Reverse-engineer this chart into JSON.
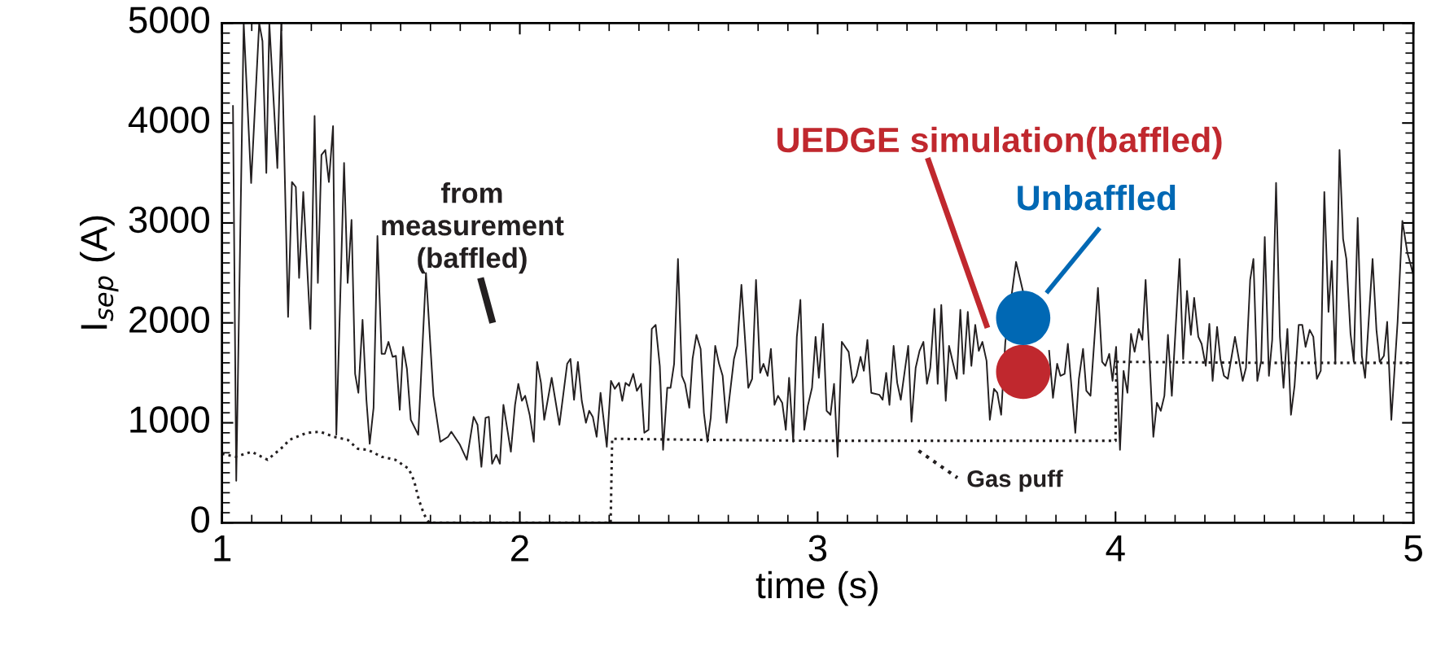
{
  "chart_data": {
    "type": "line",
    "xlabel": "time (s)",
    "ylabel": "I$_{sep}$ (A)",
    "xlim": [
      1,
      5
    ],
    "ylim": [
      0,
      5000
    ],
    "xticks": [
      1,
      2,
      3,
      4,
      5
    ],
    "yticks": [
      0,
      1000,
      2000,
      3000,
      4000,
      5000
    ],
    "grid": false,
    "series": [
      {
        "name": "from\nmeasurement\n(baffled)",
        "color": "#231f20",
        "line_style": "solid",
        "x": [
          1.037,
          1.048,
          1.073,
          1.098,
          1.125,
          1.136,
          1.149,
          1.159,
          1.186,
          1.199,
          1.222,
          1.235,
          1.248,
          1.259,
          1.273,
          1.297,
          1.311,
          1.322,
          1.334,
          1.347,
          1.359,
          1.373,
          1.384,
          1.41,
          1.422,
          1.435,
          1.447,
          1.458,
          1.472,
          1.485,
          1.496,
          1.509,
          1.522,
          1.536,
          1.547,
          1.559,
          1.573,
          1.584,
          1.597,
          1.608,
          1.621,
          1.634,
          1.659,
          1.685,
          1.71,
          1.733,
          1.759,
          1.77,
          1.799,
          1.822,
          1.845,
          1.858,
          1.871,
          1.885,
          1.896,
          1.907,
          1.921,
          1.933,
          1.945,
          1.97,
          1.984,
          1.995,
          2.007,
          2.018,
          2.033,
          2.047,
          2.058,
          2.071,
          2.082,
          2.107,
          2.133,
          2.159,
          2.17,
          2.182,
          2.195,
          2.208,
          2.222,
          2.233,
          2.245,
          2.258,
          2.271,
          2.292,
          2.306,
          2.319,
          2.333,
          2.344,
          2.355,
          2.367,
          2.381,
          2.393,
          2.407,
          2.418,
          2.432,
          2.443,
          2.456,
          2.47,
          2.481,
          2.495,
          2.506,
          2.518,
          2.531,
          2.544,
          2.555,
          2.569,
          2.58,
          2.593,
          2.607,
          2.618,
          2.63,
          2.641,
          2.656,
          2.669,
          2.681,
          2.694,
          2.719,
          2.73,
          2.744,
          2.767,
          2.78,
          2.793,
          2.807,
          2.818,
          2.832,
          2.843,
          2.855,
          2.867,
          2.881,
          2.893,
          2.904,
          2.918,
          2.93,
          2.942,
          2.955,
          2.967,
          2.981,
          2.993,
          3.004,
          3.018,
          3.03,
          3.043,
          3.055,
          3.067,
          3.081,
          3.104,
          3.118,
          3.13,
          3.144,
          3.155,
          3.167,
          3.18,
          3.207,
          3.218,
          3.23,
          3.241,
          3.255,
          3.267,
          3.279,
          3.304,
          3.315,
          3.329,
          3.342,
          3.355,
          3.367,
          3.378,
          3.392,
          3.403,
          3.415,
          3.43,
          3.441,
          3.455,
          3.467,
          3.479,
          3.49,
          3.504,
          3.516,
          3.529,
          3.541,
          3.553,
          3.567,
          3.578,
          3.592,
          3.603,
          3.616,
          3.63,
          3.666,
          3.689,
          3.764,
          3.777,
          3.79,
          3.804,
          3.815,
          3.829,
          3.84,
          3.865,
          3.877,
          3.891,
          3.902,
          3.916,
          3.941,
          3.955,
          3.966,
          3.979,
          3.99,
          4.002,
          4.015,
          4.027,
          4.04,
          4.052,
          4.064,
          4.078,
          4.09,
          4.101,
          4.127,
          4.139,
          4.152,
          4.164,
          4.176,
          4.189,
          4.215,
          4.227,
          4.24,
          4.253,
          4.264,
          4.278,
          4.289,
          4.303,
          4.315,
          4.326,
          4.341,
          4.352,
          4.364,
          4.377,
          4.401,
          4.427,
          4.438,
          4.452,
          4.463,
          4.476,
          4.489,
          4.501,
          4.515,
          4.526,
          4.539,
          4.552,
          4.564,
          4.577,
          4.589,
          4.601,
          4.615,
          4.627,
          4.638,
          4.652,
          4.664,
          4.676,
          4.689,
          4.701,
          4.715,
          4.726,
          4.738,
          4.752,
          4.764,
          4.775,
          4.789,
          4.8,
          4.813,
          4.827,
          4.838,
          4.863,
          4.876,
          4.887,
          4.901,
          4.912,
          4.926,
          4.947,
          4.963,
          4.98,
          5.0
        ],
        "values": [
          4170,
          420,
          5000,
          3400,
          5000,
          4820,
          3500,
          5000,
          3550,
          5000,
          2060,
          3410,
          3360,
          2450,
          3310,
          1940,
          4070,
          2400,
          3680,
          3730,
          3410,
          3970,
          880,
          3600,
          2400,
          3030,
          1490,
          1300,
          2030,
          1230,
          790,
          1150,
          2870,
          1690,
          1690,
          1810,
          1660,
          1670,
          1130,
          1760,
          1540,
          1030,
          880,
          2500,
          1270,
          810,
          860,
          910,
          780,
          630,
          1060,
          980,
          560,
          1050,
          1060,
          590,
          680,
          590,
          1180,
          710,
          1180,
          1390,
          1220,
          1270,
          1080,
          810,
          1610,
          1400,
          1030,
          1450,
          980,
          1590,
          1640,
          1230,
          1610,
          1220,
          1000,
          1120,
          1060,
          860,
          1300,
          760,
          1420,
          1340,
          1400,
          1220,
          1400,
          1370,
          1490,
          1320,
          1390,
          900,
          930,
          1940,
          1980,
          1570,
          730,
          1350,
          1350,
          1590,
          2640,
          1470,
          1390,
          1150,
          1640,
          1880,
          1740,
          1100,
          810,
          1050,
          1770,
          1590,
          1470,
          1000,
          1640,
          1770,
          2380,
          1350,
          1440,
          2430,
          1500,
          1590,
          1470,
          1740,
          1180,
          1270,
          1200,
          930,
          1450,
          810,
          1860,
          2230,
          930,
          1170,
          1350,
          1860,
          1450,
          1990,
          1120,
          1080,
          1390,
          660,
          1810,
          1710,
          1400,
          1470,
          1660,
          1520,
          1830,
          1300,
          1280,
          1230,
          1500,
          1180,
          1770,
          1400,
          1230,
          1770,
          1010,
          1550,
          1720,
          1810,
          1390,
          1550,
          2140,
          1390,
          2180,
          1220,
          1770,
          1590,
          1440,
          2130,
          1490,
          2110,
          1570,
          1980,
          1720,
          1810,
          1620,
          1030,
          1340,
          1300,
          1080,
          1810,
          2610,
          2320,
          null,
          1720,
          1250,
          1590,
          1470,
          1490,
          1790,
          900,
          1440,
          1740,
          1320,
          1270,
          2350,
          1610,
          1570,
          1690,
          1420,
          1760,
          730,
          1520,
          1300,
          1890,
          1710,
          1940,
          1830,
          2430,
          860,
          1200,
          1120,
          1270,
          1880,
          1270,
          2640,
          1640,
          2320,
          1880,
          2250,
          1860,
          1790,
          1570,
          1990,
          1420,
          1960,
          1640,
          1470,
          1440,
          1860,
          1420,
          1550,
          2430,
          2640,
          1420,
          1620,
          2860,
          1470,
          1830,
          3400,
          1860,
          1350,
          1940,
          1080,
          1370,
          1980,
          1980,
          1760,
          1930,
          1860,
          1440,
          1520,
          3310,
          2110,
          2620,
          1590,
          3730,
          2840,
          2640,
          1890,
          1610,
          3050,
          1670,
          1450,
          2640,
          1930,
          1610,
          1670,
          2010,
          1030,
          2010,
          3020,
          2700,
          2480
        ]
      },
      {
        "name": "Gas puff",
        "color": "#231f20",
        "line_style": "dotted",
        "x": [
          1.0,
          1.045,
          1.1,
          1.153,
          1.205,
          1.227,
          1.285,
          1.33,
          1.376,
          1.422,
          1.456,
          1.49,
          1.536,
          1.582,
          1.627,
          1.645,
          1.662,
          1.679,
          1.696,
          2.305,
          2.31,
          2.6,
          3.0,
          3.5,
          4.0,
          4.003,
          4.5,
          5.0
        ],
        "values": [
          690,
          660,
          710,
          630,
          760,
          830,
          900,
          910,
          860,
          830,
          740,
          730,
          660,
          630,
          540,
          420,
          220,
          80,
          0,
          0,
          840,
          830,
          820,
          820,
          820,
          1610,
          1600,
          1600
        ]
      },
      {
        "name": "UEDGE simulation(baffled)",
        "type": "scatter",
        "color": "#c0282e",
        "marker": "circle",
        "x": [
          3.69
        ],
        "values": [
          1510
        ]
      },
      {
        "name": "Unbaffled",
        "type": "scatter",
        "color": "#0068b4",
        "marker": "circle",
        "x": [
          3.69
        ],
        "values": [
          2050
        ]
      }
    ]
  }
}
